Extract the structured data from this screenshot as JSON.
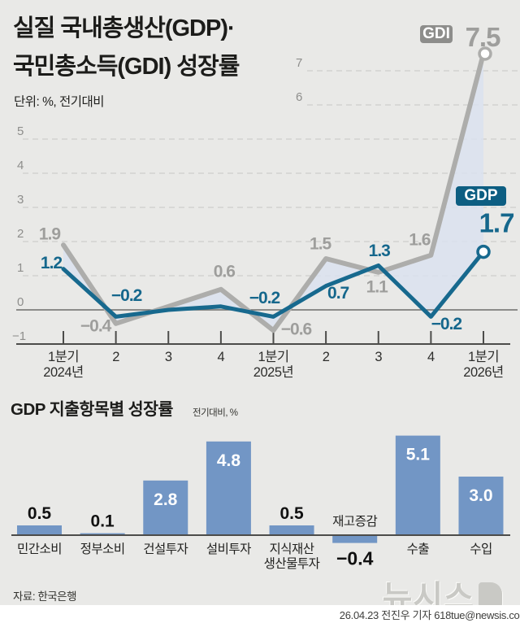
{
  "header": {
    "title_line1": "실질 국내총생산(GDP)·",
    "title_line2": "국민총소득(GDI) 성장률",
    "unit_note": "단위: %, 전기대비"
  },
  "badges": {
    "gdi": "GDI",
    "gdp": "GDP"
  },
  "chart_data": [
    {
      "type": "line",
      "title": "실질 국내총생산(GDP)·국민총소득(GDI) 성장률",
      "unit": "%, 전기대비",
      "x_labels": [
        "1분기",
        "2",
        "3",
        "4",
        "1분기",
        "2",
        "3",
        "4",
        "1분기"
      ],
      "year_labels": [
        {
          "index": 0,
          "label": "2024년"
        },
        {
          "index": 4,
          "label": "2025년"
        },
        {
          "index": 8,
          "label": "2026년"
        }
      ],
      "yticks": [
        -1,
        0,
        1,
        2,
        3,
        4,
        5,
        6,
        7
      ],
      "ylim": [
        -1,
        7.8
      ],
      "grid": "dashed",
      "series": [
        {
          "name": "GDI",
          "color": "#adadab",
          "label_color": "#9e9e9c",
          "values": [
            1.9,
            -0.4,
            0.1,
            0.6,
            -0.6,
            1.5,
            1.1,
            1.6,
            7.5
          ],
          "labeled": [
            true,
            true,
            false,
            true,
            true,
            true,
            true,
            true,
            true
          ]
        },
        {
          "name": "GDP",
          "color": "#17698e",
          "label_color": "#15678c",
          "values": [
            1.2,
            -0.2,
            0.0,
            0.1,
            -0.2,
            0.7,
            1.3,
            -0.2,
            1.7
          ],
          "labeled": [
            true,
            true,
            false,
            false,
            true,
            true,
            true,
            true,
            true
          ]
        }
      ],
      "fill_between_color": "#d9e1f0"
    },
    {
      "type": "bar",
      "title": "GDP 지출항목별 성장률",
      "unit": "전기대비, %",
      "categories": [
        "민간소비",
        "정부소비",
        "건설투자",
        "설비투자",
        "지식재산\n생산물투자",
        "재고증감",
        "수출",
        "수입"
      ],
      "values": [
        0.5,
        0.1,
        2.8,
        4.8,
        0.5,
        -0.4,
        5.1,
        3.0
      ],
      "bar_color": "#7296c5"
    }
  ],
  "footer": {
    "source": "자료: 한국은행",
    "logo": "뉴시스",
    "credit": "26.04.23 전진우 기자 618tue@newsis.com"
  }
}
